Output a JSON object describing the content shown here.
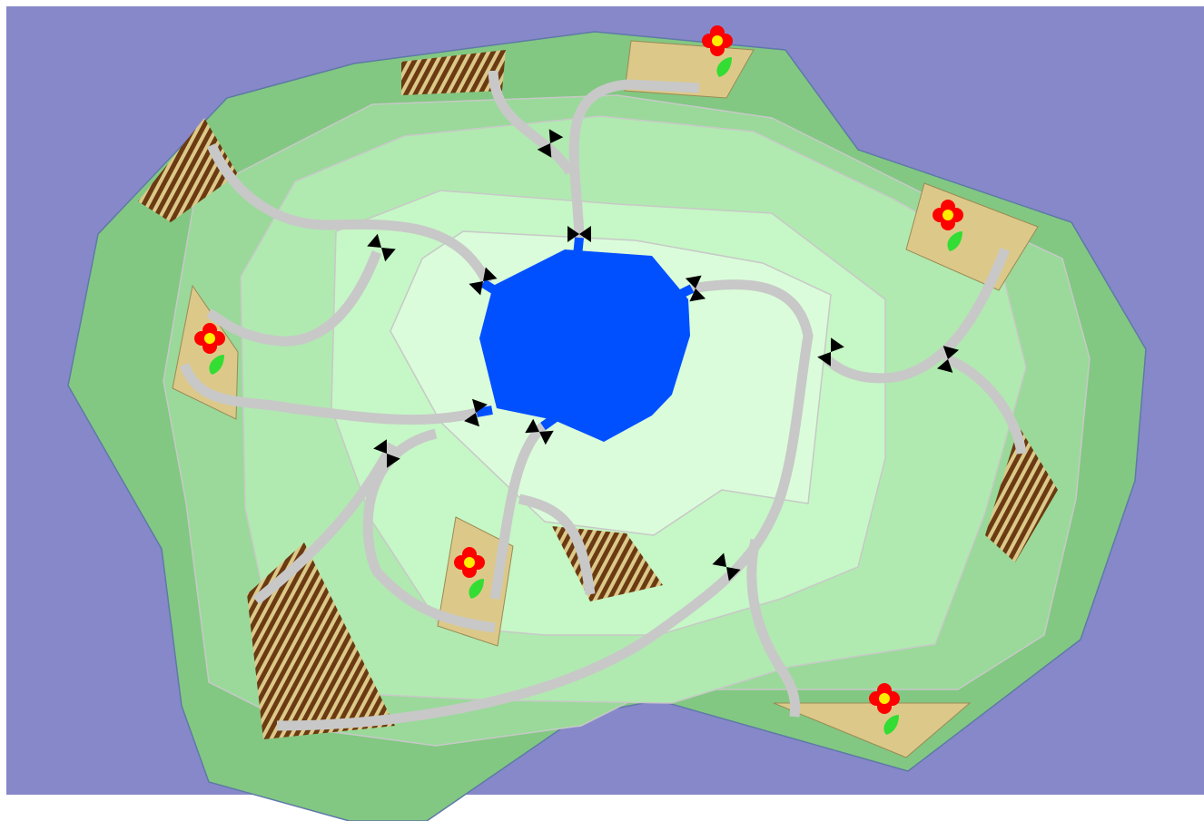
{
  "colors": {
    "frame": "#ffffff",
    "water": "#8788c9",
    "lake": "#0050ff",
    "lake_outline": "#1a44d8",
    "terrace_1": "#82c882",
    "terrace_2": "#9ad99a",
    "terrace_3": "#b0eab0",
    "terrace_4": "#c6f7c6",
    "terrace_5": "#dafcda",
    "terrace_edge": "#c8c8c8",
    "island_outline": "#5f79a8",
    "pipe": "#c8c8c8",
    "garden": "#dcc989",
    "garden_outline": "#9a8a55",
    "field_stripe": "#6b3a12",
    "petal": "#ff0000",
    "flower_center": "#ffee00",
    "leaf": "#33dd33",
    "valve": "#000000"
  },
  "board": {
    "gardens": [
      {
        "name": "garden-north",
        "icon": "flower-icon"
      },
      {
        "name": "garden-northeast",
        "icon": "flower-icon"
      },
      {
        "name": "garden-west",
        "icon": "flower-icon"
      },
      {
        "name": "garden-south",
        "icon": "flower-icon"
      },
      {
        "name": "garden-southeast",
        "icon": "flower-icon"
      }
    ],
    "fields_count": 5,
    "valves_count": 14
  }
}
